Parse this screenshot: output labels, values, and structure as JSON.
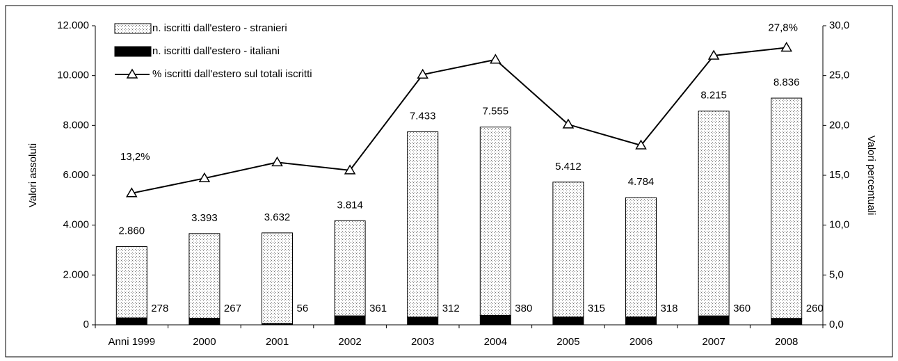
{
  "chart_data": {
    "type": "bar-line",
    "y_label": "Valori assoluti",
    "y2_label": "Valori percentuali",
    "categories": [
      "Anni 1999",
      "2000",
      "2001",
      "2002",
      "2003",
      "2004",
      "2005",
      "2006",
      "2007",
      "2008"
    ],
    "series": [
      {
        "name": "n. iscritti dall'estero - stranieri",
        "type": "bar",
        "stack": true,
        "color": "#777777",
        "values": [
          2860,
          3393,
          3632,
          3814,
          7433,
          7555,
          5412,
          4784,
          8215,
          8836
        ],
        "value_labels": [
          "2.860",
          "3.393",
          "3.632",
          "3.814",
          "7.433",
          "7.555",
          "5.412",
          "4.784",
          "8.215",
          "8.836"
        ]
      },
      {
        "name": "n. iscritti dall'estero - italiani",
        "type": "bar",
        "stack": true,
        "color": "#000000",
        "values": [
          278,
          267,
          56,
          361,
          312,
          380,
          315,
          318,
          360,
          260
        ]
      },
      {
        "name": "% iscritti dall'estero sul  totali iscritti",
        "type": "line",
        "axis": "y2",
        "color": "#000000",
        "values": [
          13.2,
          14.7,
          16.3,
          15.5,
          25.1,
          26.6,
          20.1,
          18.0,
          27.0,
          27.8
        ],
        "value_labels": [
          "13,2%",
          null,
          null,
          null,
          null,
          null,
          null,
          null,
          null,
          "27,8%"
        ]
      }
    ],
    "ylim": [
      0,
      12000
    ],
    "yticks": [
      0,
      {
        "value": 2000,
        "label": "2.000"
      },
      {
        "value": 4000,
        "label": "4.000"
      },
      {
        "value": 6000,
        "label": "6.000"
      },
      {
        "value": 8000,
        "label": "8.000"
      },
      {
        "value": 10000,
        "label": "10.000"
      },
      {
        "value": 12000,
        "label": "12.000"
      }
    ],
    "y2lim": [
      0,
      30
    ],
    "y2ticks": [
      {
        "value": 0,
        "label": "0,0"
      },
      {
        "value": 5,
        "label": "5,0"
      },
      {
        "value": 10,
        "label": "10,0"
      },
      {
        "value": 15,
        "label": "15,0"
      },
      {
        "value": 20,
        "label": "20,0"
      },
      {
        "value": 25,
        "label": "25,0"
      },
      {
        "value": 30,
        "label": "30,0"
      }
    ],
    "legend": "top-left"
  }
}
